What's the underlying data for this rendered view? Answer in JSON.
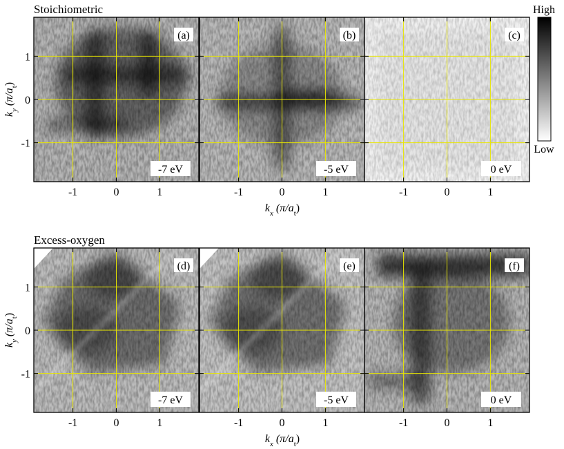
{
  "chart_data": {
    "type": "heatmap",
    "colorbar": {
      "high_label": "High",
      "low_label": "Low"
    },
    "x_ticks": [
      "-1",
      "0",
      "1"
    ],
    "y_ticks": [
      "1",
      "0",
      "-1"
    ],
    "x_tick_values": [
      -1,
      0,
      1
    ],
    "y_tick_values": [
      1,
      0,
      -1
    ],
    "xlim": [
      -1.9,
      1.9
    ],
    "ylim": [
      -1.9,
      1.9
    ],
    "xlabel": {
      "k": "k",
      "sub": "x",
      "unit": "(π/a",
      "unit_sub": "t",
      "close": ")"
    },
    "ylabel": {
      "k": "k",
      "sub": "y",
      "unit": "(π/a",
      "unit_sub": "t",
      "close": ")"
    },
    "gridlines_at": [
      -1,
      0,
      1
    ],
    "grid_color": "#e8e600",
    "rows": [
      {
        "title": "Stoichiometric",
        "panels": [
          {
            "label": "(a)",
            "energy": "-7 eV",
            "pattern": "square_blob",
            "intensity": 0.62
          },
          {
            "label": "(b)",
            "energy": "-5 eV",
            "pattern": "cross",
            "intensity": 0.58
          },
          {
            "label": "(c)",
            "energy": "0 eV",
            "pattern": "faint",
            "intensity": 0.12
          }
        ]
      },
      {
        "title": "Excess-oxygen",
        "panels": [
          {
            "label": "(d)",
            "energy": "-7 eV",
            "pattern": "diamond_blob",
            "intensity": 0.55
          },
          {
            "label": "(e)",
            "energy": "-5 eV",
            "pattern": "diamond_blob",
            "intensity": 0.5
          },
          {
            "label": "(f)",
            "energy": "0 eV",
            "pattern": "t_shape",
            "intensity": 0.6
          }
        ]
      }
    ]
  }
}
